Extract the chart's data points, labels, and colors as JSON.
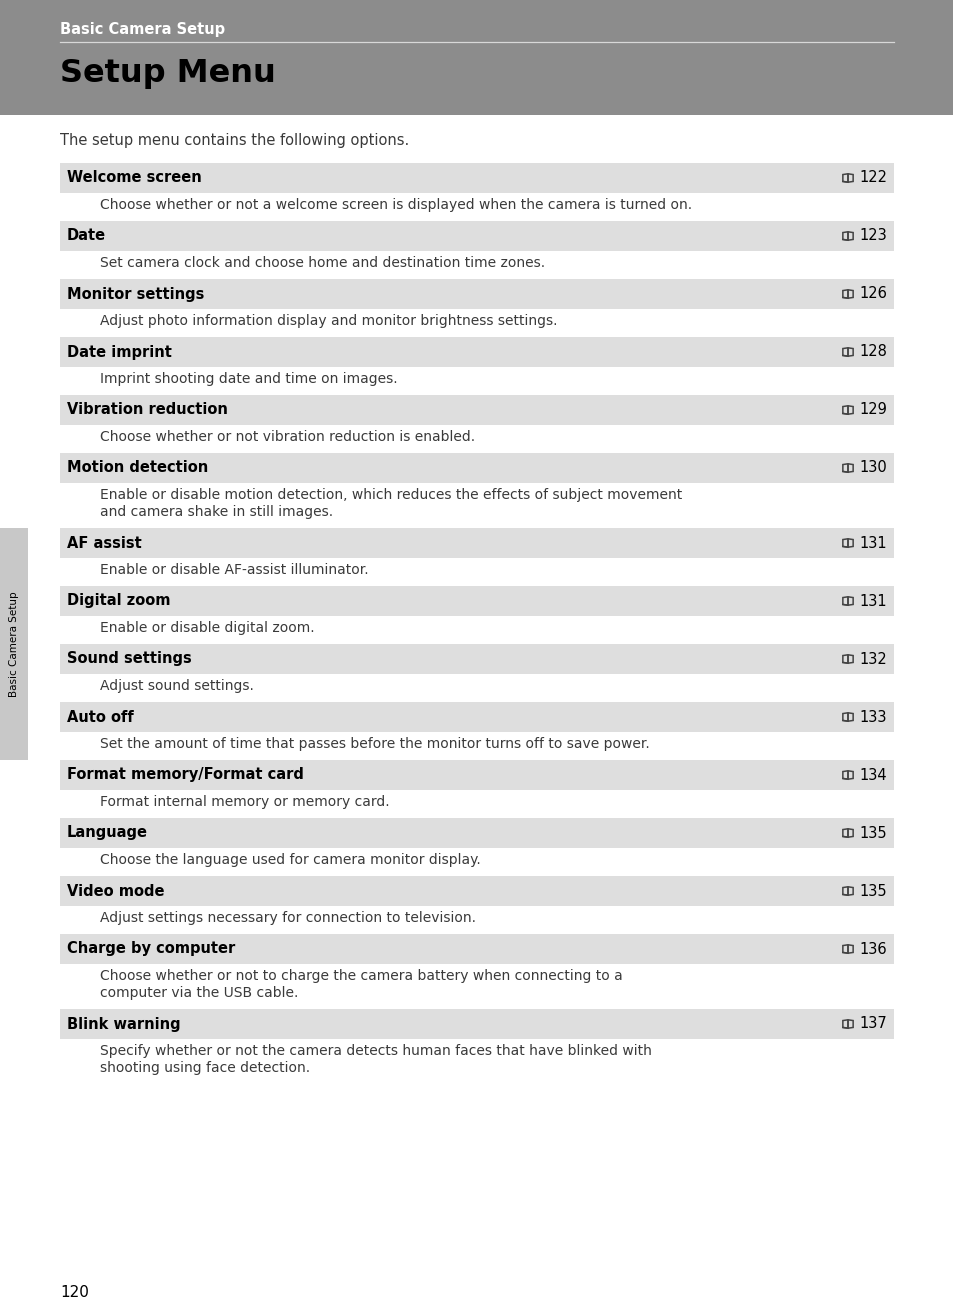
{
  "header_bg": "#8c8c8c",
  "header_text": "Basic Camera Setup",
  "title_bg": "#8c8c8c",
  "title_text": "Setup Menu",
  "intro_text": "The setup menu contains the following options.",
  "page_bg": "#ffffff",
  "row_bg": "#dedede",
  "desc_bg": "#ffffff",
  "row_text_color": "#000000",
  "desc_text_color": "#3a3a3a",
  "sidebar_bg": "#c8c8c8",
  "sidebar_text": "Basic Camera Setup",
  "page_number": "120",
  "header_line_color": "#e0e0e0",
  "book_icon_color": "#444444",
  "entries": [
    {
      "title": "Welcome screen",
      "page_ref": "122",
      "description": "Choose whether or not a welcome screen is displayed when the camera is turned on.",
      "desc_lines": 1
    },
    {
      "title": "Date",
      "page_ref": "123",
      "description": "Set camera clock and choose home and destination time zones.",
      "desc_lines": 1
    },
    {
      "title": "Monitor settings",
      "page_ref": "126",
      "description": "Adjust photo information display and monitor brightness settings.",
      "desc_lines": 1
    },
    {
      "title": "Date imprint",
      "page_ref": "128",
      "description": "Imprint shooting date and time on images.",
      "desc_lines": 1
    },
    {
      "title": "Vibration reduction",
      "page_ref": "129",
      "description": "Choose whether or not vibration reduction is enabled.",
      "desc_lines": 1
    },
    {
      "title": "Motion detection",
      "page_ref": "130",
      "description": "Enable or disable motion detection, which reduces the effects of subject movement\nand camera shake in still images.",
      "desc_lines": 2
    },
    {
      "title": "AF assist",
      "page_ref": "131",
      "description": "Enable or disable AF-assist illuminator.",
      "desc_lines": 1
    },
    {
      "title": "Digital zoom",
      "page_ref": "131",
      "description": "Enable or disable digital zoom.",
      "desc_lines": 1
    },
    {
      "title": "Sound settings",
      "page_ref": "132",
      "description": "Adjust sound settings.",
      "desc_lines": 1
    },
    {
      "title": "Auto off",
      "page_ref": "133",
      "description": "Set the amount of time that passes before the monitor turns off to save power.",
      "desc_lines": 1
    },
    {
      "title": "Format memory/Format card",
      "page_ref": "134",
      "description": "Format internal memory or memory card.",
      "desc_lines": 1
    },
    {
      "title": "Language",
      "page_ref": "135",
      "description": "Choose the language used for camera monitor display.",
      "desc_lines": 1
    },
    {
      "title": "Video mode",
      "page_ref": "135",
      "description": "Adjust settings necessary for connection to television.",
      "desc_lines": 1
    },
    {
      "title": "Charge by computer",
      "page_ref": "136",
      "description": "Choose whether or not to charge the camera battery when connecting to a\ncomputer via the USB cable.",
      "desc_lines": 2
    },
    {
      "title": "Blink warning",
      "page_ref": "137",
      "description": "Specify whether or not the camera detects human faces that have blinked with\nshooting using face detection.",
      "desc_lines": 2
    }
  ]
}
